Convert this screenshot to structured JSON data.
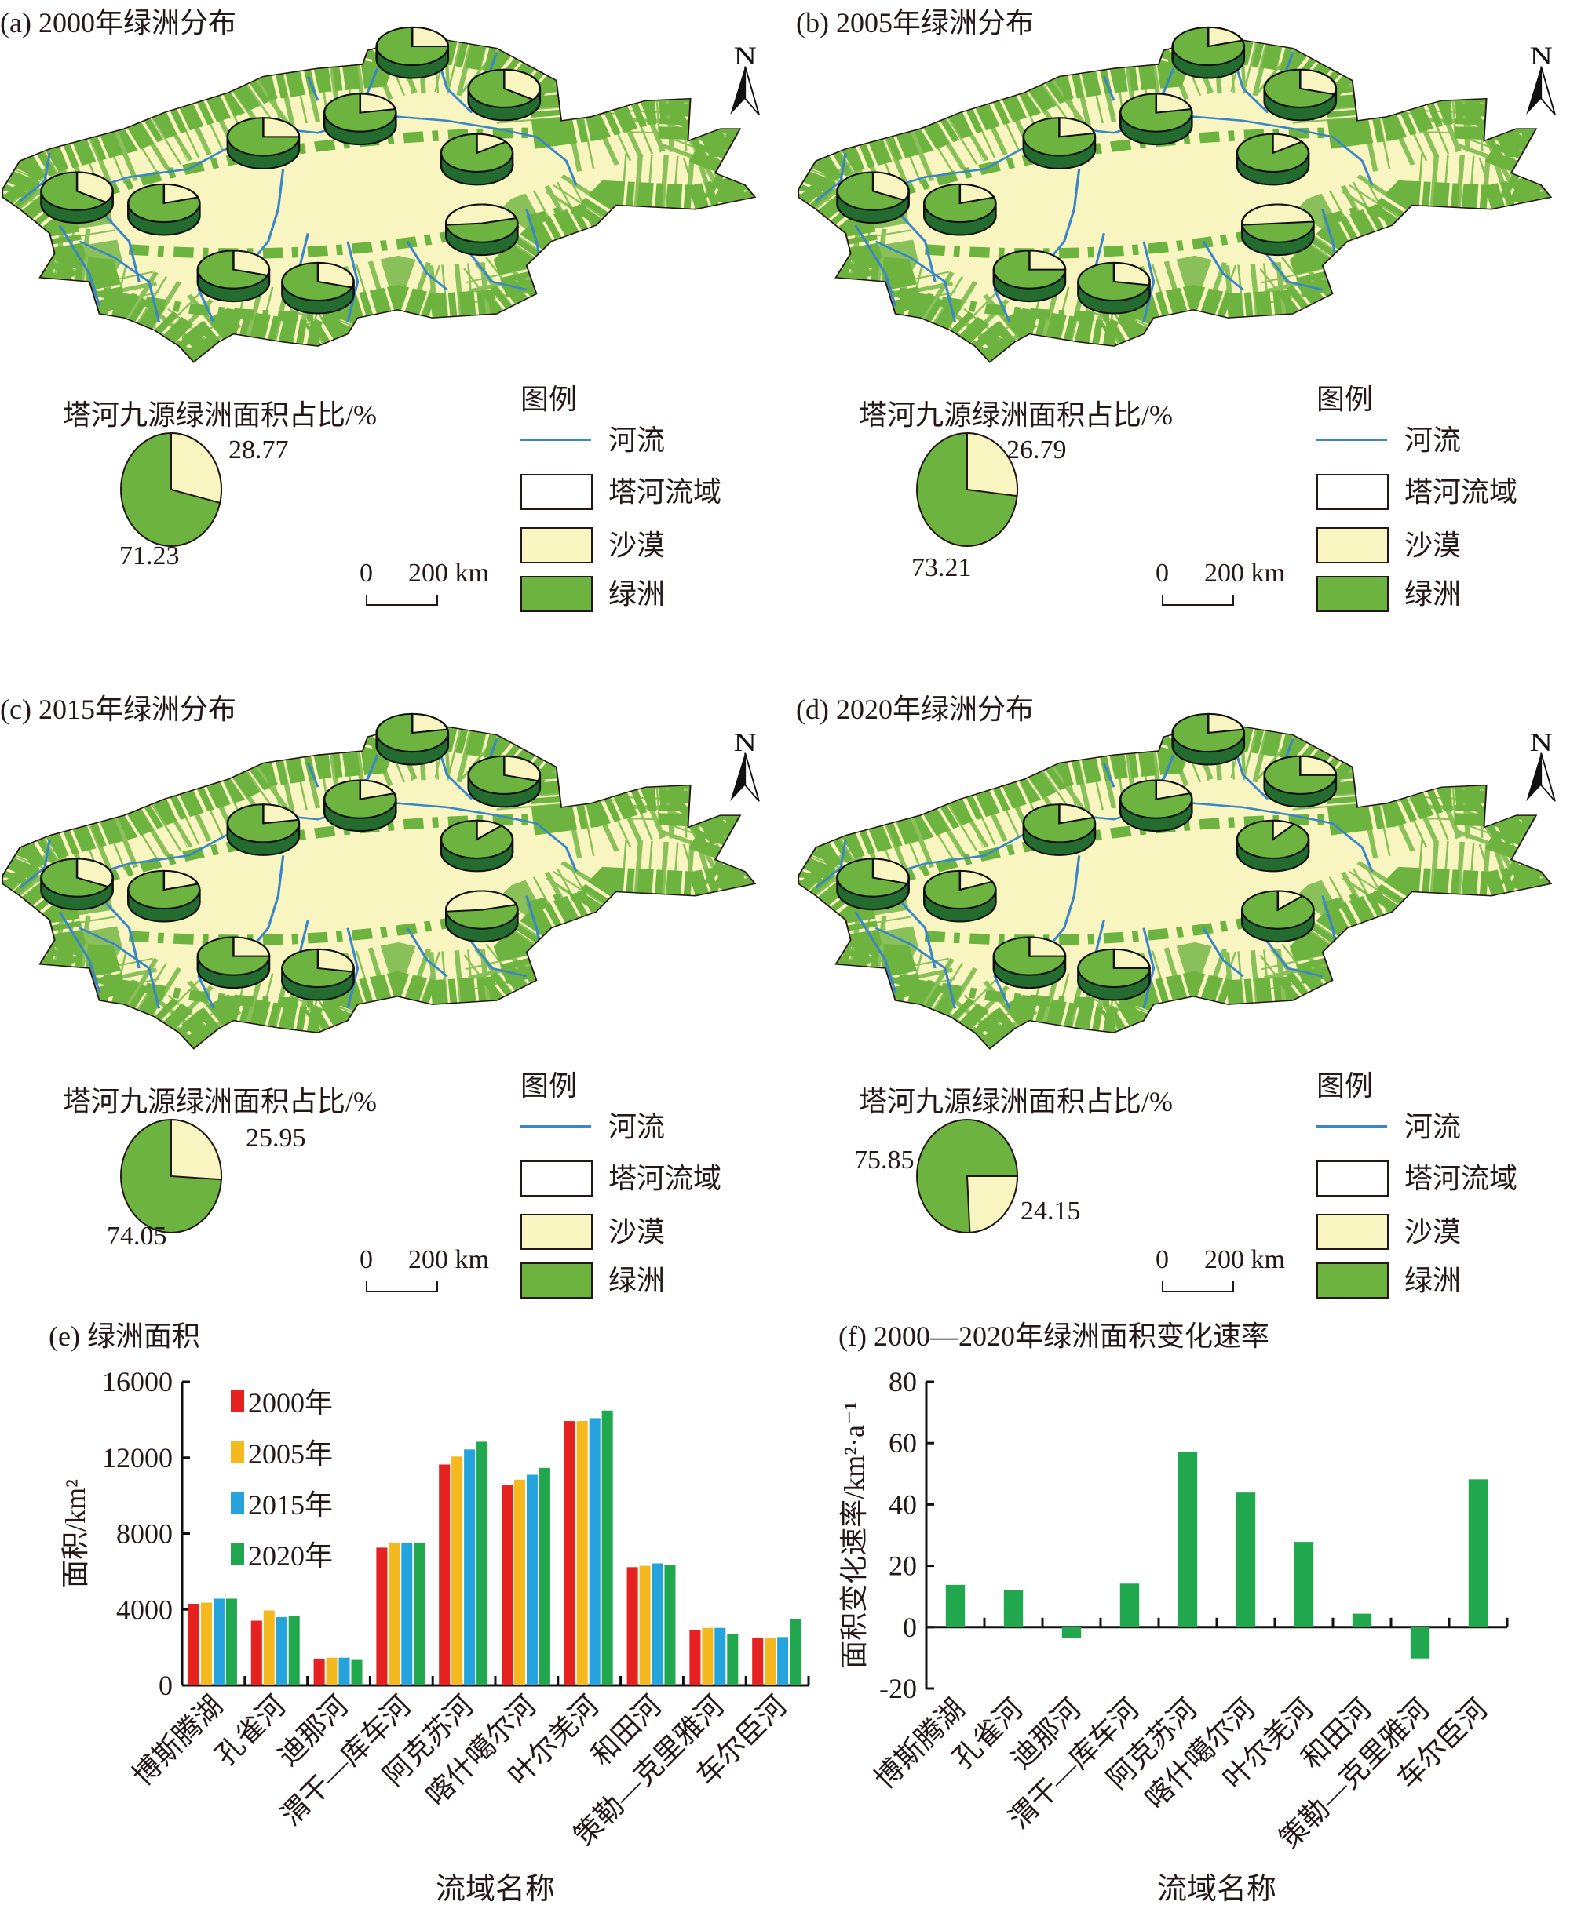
{
  "colors": {
    "desert": "#f8f5c0",
    "oasis": "#6db33f",
    "oasis_dark": "#236b2f",
    "river": "#3a86c8",
    "bar2000": "#e62220",
    "bar2005": "#f4b91f",
    "bar2015": "#24a3dc",
    "bar2020": "#21a84f"
  },
  "maps": [
    {
      "title": "(a) 2000年绿洲分布",
      "pie_title": "塔河九源绿洲面积占比/%",
      "desert_pct": "28.77",
      "oasis_pct": "71.23",
      "desert_share": 28.77,
      "basin_desert_share": [
        0.25,
        0.35,
        0.22,
        0.25,
        0.15,
        0.35,
        0.2,
        0.47,
        0.3,
        0.3
      ]
    },
    {
      "title": "(b) 2005年绿洲分布",
      "pie_title": "塔河九源绿洲面积占比/%",
      "desert_pct": "26.79",
      "oasis_pct": "73.21",
      "desert_share": 26.79,
      "basin_desert_share": [
        0.2,
        0.3,
        0.22,
        0.22,
        0.15,
        0.33,
        0.2,
        0.5,
        0.25,
        0.28
      ]
    },
    {
      "title": "(c) 2015年绿洲分布",
      "pie_title": "塔河九源绿洲面积占比/%",
      "desert_pct": "25.95",
      "oasis_pct": "74.05",
      "desert_share": 25.95,
      "basin_desert_share": [
        0.22,
        0.3,
        0.2,
        0.22,
        0.12,
        0.33,
        0.2,
        0.47,
        0.25,
        0.28
      ]
    },
    {
      "title": "(d) 2020年绿洲分布",
      "pie_title": "塔河九源绿洲面积占比/%",
      "desert_pct": "24.15",
      "oasis_pct": "75.85",
      "desert_share": 24.15,
      "basin_desert_share": [
        0.22,
        0.25,
        0.2,
        0.2,
        0.1,
        0.3,
        0.18,
        0.12,
        0.25,
        0.25
      ]
    }
  ],
  "legend": {
    "heading": "图例",
    "river": "河流",
    "basin": "塔河流域",
    "desert": "沙漠",
    "oasis": "绿洲",
    "north": "N",
    "scale_zero": "0",
    "scale_label": "200 km"
  },
  "chart_data": [
    {
      "type": "bar",
      "title": "(e) 绿洲面积",
      "xlabel": "流域名称",
      "ylabel": "面积/km²",
      "ylim": [
        0,
        16000
      ],
      "yticks": [
        "0",
        "4000",
        "8000",
        "12000",
        "16000"
      ],
      "categories": [
        "博斯腾湖",
        "孔雀河",
        "迪那河",
        "渭干—库车河",
        "阿克苏河",
        "喀什噶尔河",
        "叶尔羌河",
        "和田河",
        "策勒—克里雅河",
        "车尔臣河"
      ],
      "series": [
        {
          "name": "2000年",
          "values": [
            4300,
            3410,
            1410,
            7260,
            11640,
            10550,
            13930,
            6230,
            2910,
            2500
          ]
        },
        {
          "name": "2005年",
          "values": [
            4360,
            3950,
            1460,
            7530,
            12060,
            10840,
            13930,
            6300,
            3030,
            2500
          ]
        },
        {
          "name": "2015年",
          "values": [
            4570,
            3600,
            1460,
            7530,
            12430,
            11100,
            14080,
            6430,
            3030,
            2550
          ]
        },
        {
          "name": "2020年",
          "values": [
            4570,
            3650,
            1340,
            7530,
            12840,
            11460,
            14480,
            6340,
            2700,
            3490
          ]
        }
      ],
      "legend": "top-left"
    },
    {
      "type": "bar",
      "title": "(f) 2000—2020年绿洲面积变化速率",
      "xlabel": "流域名称",
      "ylabel": "面积变化速率/km²·a⁻¹",
      "ylim": [
        -20,
        80
      ],
      "yticks": [
        "-20",
        "0",
        "20",
        "40",
        "60",
        "80"
      ],
      "categories": [
        "博斯腾湖",
        "孔雀河",
        "迪那河",
        "渭干—库车河",
        "阿克苏河",
        "喀什噶尔河",
        "叶尔羌河",
        "和田河",
        "策勒—克里雅河",
        "车尔臣河"
      ],
      "values": [
        13.8,
        12.0,
        -3.4,
        14.2,
        57.2,
        43.9,
        27.8,
        4.4,
        -10.2,
        48.2
      ]
    }
  ]
}
